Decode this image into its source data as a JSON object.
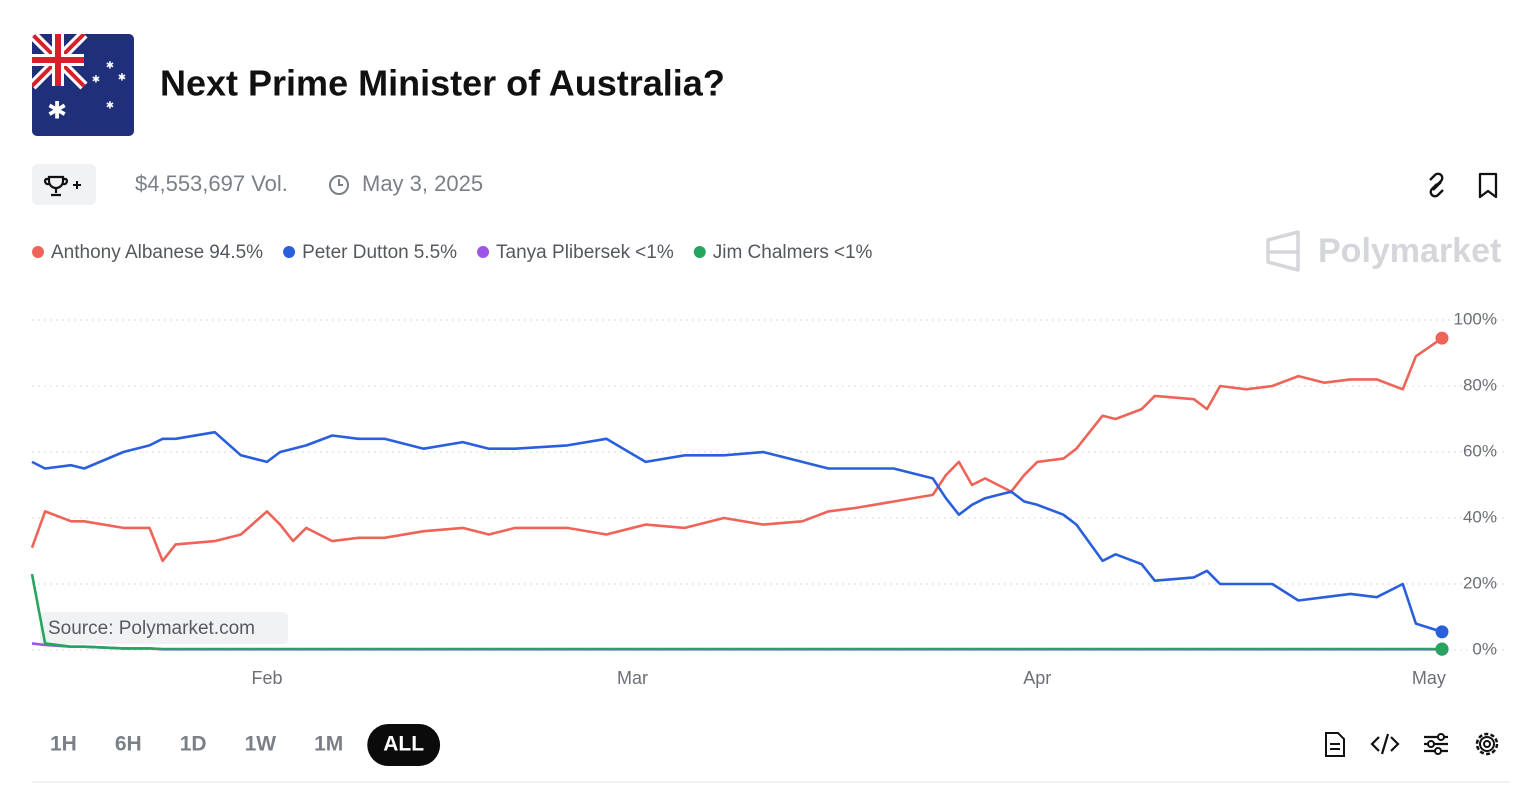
{
  "header": {
    "title": "Next Prime Minister of Australia?",
    "volume": "$4,553,697 Vol.",
    "end_date": "May 3, 2025",
    "brand": "Polymarket"
  },
  "chart_data": {
    "type": "line",
    "source": "Source: Polymarket.com",
    "x": [
      0,
      1,
      3,
      4,
      7,
      9,
      10,
      11,
      14,
      16,
      18,
      19,
      20,
      21,
      23,
      25,
      27,
      30,
      33,
      35,
      37,
      41,
      44,
      47,
      50,
      53,
      56,
      59,
      61,
      63,
      66,
      69,
      70,
      71,
      72,
      73,
      75,
      76,
      77,
      79,
      80,
      82,
      83,
      85,
      86,
      89,
      90,
      91,
      93,
      95,
      97,
      99,
      101,
      103,
      105,
      106,
      108
    ],
    "xlim": [
      0,
      108
    ],
    "xticks": [
      {
        "value": 18,
        "label": "Feb"
      },
      {
        "value": 46,
        "label": "Mar"
      },
      {
        "value": 77,
        "label": "Apr"
      },
      {
        "value": 107,
        "label": "May"
      }
    ],
    "ylim": [
      0,
      100
    ],
    "yticks": [
      {
        "value": 0,
        "label": "0%"
      },
      {
        "value": 20,
        "label": "20%"
      },
      {
        "value": 40,
        "label": "40%"
      },
      {
        "value": 60,
        "label": "60%"
      },
      {
        "value": 80,
        "label": "80%"
      },
      {
        "value": 100,
        "label": "100%"
      }
    ],
    "grid": true,
    "series": [
      {
        "name": "Anthony Albanese",
        "legend_value": "94.5%",
        "color": "#ee6459",
        "values": [
          31,
          42,
          39,
          39,
          37,
          37,
          27,
          32,
          33,
          35,
          42,
          38,
          33,
          37,
          33,
          34,
          34,
          36,
          37,
          35,
          37,
          37,
          35,
          38,
          37,
          40,
          38,
          39,
          42,
          43,
          45,
          47,
          53,
          57,
          50,
          52,
          48,
          53,
          57,
          58,
          61,
          71,
          70,
          73,
          77,
          76,
          73,
          80,
          79,
          80,
          83,
          81,
          82,
          82,
          79,
          89,
          94.5
        ]
      },
      {
        "name": "Peter Dutton",
        "legend_value": "5.5%",
        "color": "#2a5fdc",
        "values": [
          57,
          55,
          56,
          55,
          60,
          62,
          64,
          64,
          66,
          59,
          57,
          60,
          61,
          62,
          65,
          64,
          64,
          61,
          63,
          61,
          61,
          62,
          64,
          57,
          59,
          59,
          60,
          57,
          55,
          55,
          55,
          52,
          46,
          41,
          44,
          46,
          48,
          45,
          44,
          41,
          38,
          27,
          29,
          26,
          21,
          22,
          24,
          20,
          20,
          20,
          15,
          16,
          17,
          16,
          20,
          8,
          5.5
        ]
      },
      {
        "name": "Tanya Plibersek",
        "legend_value": "<1%",
        "color": "#9c55e6",
        "values": [
          2,
          1.5,
          1,
          1,
          0.5,
          0.5,
          0.2,
          0.2,
          0.2,
          0.2,
          0.2,
          0.2,
          0.2,
          0.2,
          0.2,
          0.2,
          0.2,
          0.2,
          0.2,
          0.2,
          0.2,
          0.2,
          0.2,
          0.2,
          0.2,
          0.2,
          0.2,
          0.2,
          0.2,
          0.2,
          0.2,
          0.2,
          0.2,
          0.2,
          0.2,
          0.2,
          0.2,
          0.2,
          0.2,
          0.2,
          0.2,
          0.2,
          0.2,
          0.2,
          0.2,
          0.2,
          0.2,
          0.2,
          0.2,
          0.2,
          0.2,
          0.2,
          0.2,
          0.2,
          0.2,
          0.2,
          0.2
        ]
      },
      {
        "name": "Jim Chalmers",
        "legend_value": "<1%",
        "color": "#27a55f",
        "values": [
          23,
          2,
          1,
          1,
          0.5,
          0.5,
          0.3,
          0.3,
          0.3,
          0.3,
          0.3,
          0.3,
          0.3,
          0.3,
          0.3,
          0.3,
          0.3,
          0.3,
          0.3,
          0.3,
          0.3,
          0.3,
          0.3,
          0.3,
          0.3,
          0.3,
          0.3,
          0.3,
          0.3,
          0.3,
          0.3,
          0.3,
          0.3,
          0.3,
          0.3,
          0.3,
          0.3,
          0.3,
          0.3,
          0.3,
          0.3,
          0.3,
          0.3,
          0.3,
          0.3,
          0.3,
          0.3,
          0.3,
          0.3,
          0.3,
          0.3,
          0.3,
          0.3,
          0.3,
          0.3,
          0.3,
          0.3
        ]
      }
    ]
  },
  "controls": {
    "ranges": [
      "1H",
      "6H",
      "1D",
      "1W",
      "1M",
      "ALL"
    ],
    "selected": "ALL"
  }
}
